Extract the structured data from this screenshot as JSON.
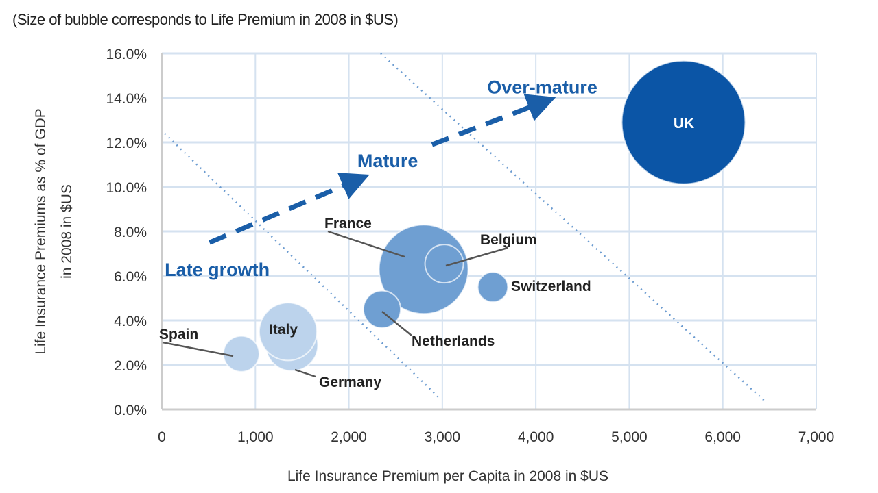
{
  "chart_data": {
    "type": "scatter",
    "subtitle": "(Size of bubble corresponds to Life Premium in 2008 in $US)",
    "xlabel": "Life Insurance Premium per Capita in 2008 in $US",
    "ylabel": [
      "Life Insurance Premiums as % of GDP",
      "in 2008 in $US"
    ],
    "xlim": [
      0,
      7000
    ],
    "ylim": [
      0,
      16
    ],
    "x_ticks": [
      "0",
      "1,000",
      "2,000",
      "3,000",
      "4,000",
      "5,000",
      "6,000",
      "7,000"
    ],
    "y_ticks": [
      "0.0%",
      "2.0%",
      "4.0%",
      "6.0%",
      "8.0%",
      "10.0%",
      "12.0%",
      "14.0%",
      "16.0%"
    ],
    "grid": true,
    "colors": {
      "dark": "#0b55a6",
      "medium": "#6f9fd2",
      "light": "#bcd3ec",
      "grid": "#d5e2f0",
      "annotation": "#1a5ea8"
    },
    "bubbles": [
      {
        "label": "Germany",
        "x": 1390,
        "y": 2.9,
        "size": 57,
        "tone": "light"
      },
      {
        "label": "Italy",
        "x": 1350,
        "y": 3.5,
        "size": 70,
        "tone": "light"
      },
      {
        "label": "Spain",
        "x": 850,
        "y": 2.5,
        "size": 27,
        "tone": "light"
      },
      {
        "label": "France",
        "x": 2800,
        "y": 6.3,
        "size": 167,
        "tone": "medium"
      },
      {
        "label": "Belgium",
        "x": 3020,
        "y": 6.55,
        "size": 31,
        "tone": "medium"
      },
      {
        "label": "Netherlands",
        "x": 2355,
        "y": 4.5,
        "size": 29,
        "tone": "medium"
      },
      {
        "label": "Switzerland",
        "x": 3540,
        "y": 5.5,
        "size": 19,
        "tone": "medium"
      },
      {
        "label": "UK",
        "x": 5580,
        "y": 12.9,
        "size": 320,
        "tone": "dark"
      }
    ],
    "boundaries": [
      {
        "from": [
          30,
          12.4
        ],
        "to": [
          2960,
          0.55
        ]
      },
      {
        "from": [
          2340,
          16
        ],
        "to": [
          6470,
          0.3
        ]
      }
    ],
    "arrows": [
      {
        "from": [
          510,
          7.5
        ],
        "to": [
          2080,
          10.3
        ]
      },
      {
        "from": [
          2890,
          11.9
        ],
        "to": [
          4070,
          13.8
        ]
      }
    ],
    "stages": [
      {
        "label": "Late growth",
        "x": 30,
        "y": 6.0
      },
      {
        "label": "Mature",
        "x": 2090,
        "y": 10.9
      },
      {
        "label": "Over-mature",
        "x": 3480,
        "y": 14.2
      }
    ]
  }
}
